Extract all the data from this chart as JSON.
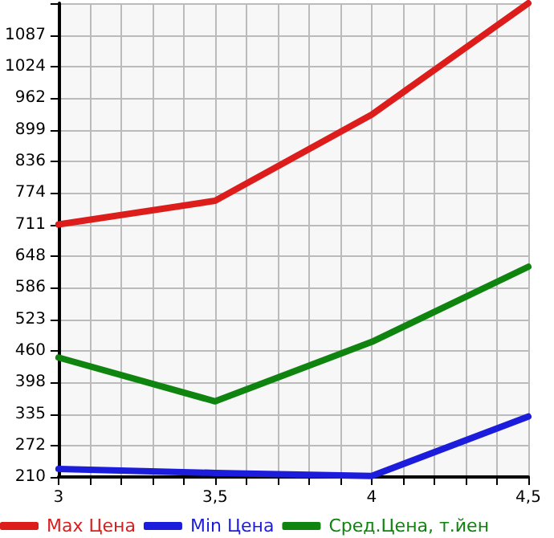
{
  "chart_data": {
    "type": "line",
    "x": [
      3,
      3.5,
      4,
      4.5
    ],
    "series": [
      {
        "name": "Max Цена",
        "color": "#dd1c1c",
        "values": [
          711,
          758,
          929,
          1150
        ]
      },
      {
        "name": "Min Цена",
        "color": "#1c1cdd",
        "values": [
          226,
          218,
          212,
          330
        ]
      },
      {
        "name": "Сред.Цена, т.йен",
        "color": "#0f840f",
        "values": [
          447,
          360,
          478,
          627
        ]
      }
    ],
    "xlim": [
      3,
      4.5
    ],
    "xticks": [
      3,
      {
        "value": 3.1,
        "label": null
      },
      {
        "value": 3.2,
        "label": null
      },
      {
        "value": 3.3,
        "label": null
      },
      {
        "value": 3.4,
        "label": null
      },
      {
        "value": 3.5,
        "label": "3,5"
      },
      {
        "value": 3.6,
        "label": null
      },
      {
        "value": 3.7,
        "label": null
      },
      {
        "value": 3.8,
        "label": null
      },
      {
        "value": 3.9,
        "label": null
      },
      4,
      {
        "value": 4.1,
        "label": null
      },
      {
        "value": 4.2,
        "label": null
      },
      {
        "value": 4.3,
        "label": null
      },
      {
        "value": 4.4,
        "label": null
      },
      {
        "value": 4.5,
        "label": "4,5"
      }
    ],
    "ylim": [
      210,
      1150
    ],
    "yticks": [
      210,
      272,
      335,
      398,
      460,
      523,
      586,
      648,
      711,
      774,
      836,
      899,
      962,
      1024,
      1087,
      {
        "value": 1150,
        "label": null
      }
    ],
    "grid": true,
    "legend": "bottom",
    "marker": "none",
    "line_style": "solid"
  }
}
